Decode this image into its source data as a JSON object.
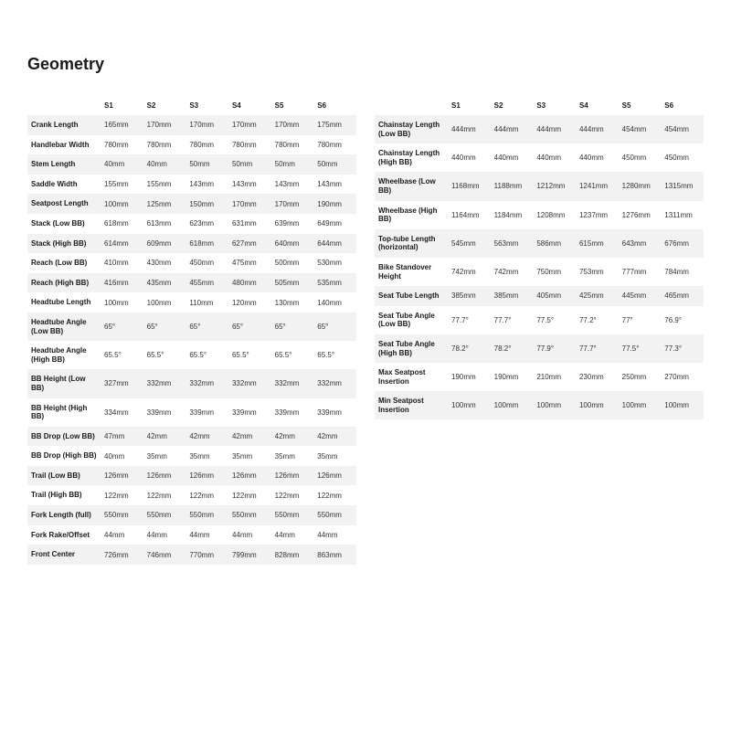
{
  "title": "Geometry",
  "columns": [
    "S1",
    "S2",
    "S3",
    "S4",
    "S5",
    "S6"
  ],
  "left_rows": [
    {
      "label": "Crank Length",
      "vals": [
        "165mm",
        "170mm",
        "170mm",
        "170mm",
        "170mm",
        "175mm"
      ]
    },
    {
      "label": "Handlebar Width",
      "vals": [
        "780mm",
        "780mm",
        "780mm",
        "780mm",
        "780mm",
        "780mm"
      ]
    },
    {
      "label": "Stem Length",
      "vals": [
        "40mm",
        "40mm",
        "50mm",
        "50mm",
        "50mm",
        "50mm"
      ]
    },
    {
      "label": "Saddle Width",
      "vals": [
        "155mm",
        "155mm",
        "143mm",
        "143mm",
        "143mm",
        "143mm"
      ]
    },
    {
      "label": "Seatpost Length",
      "vals": [
        "100mm",
        "125mm",
        "150mm",
        "170mm",
        "170mm",
        "190mm"
      ]
    },
    {
      "label": "Stack (Low BB)",
      "vals": [
        "618mm",
        "613mm",
        "623mm",
        "631mm",
        "639mm",
        "649mm"
      ]
    },
    {
      "label": "Stack (High BB)",
      "vals": [
        "614mm",
        "609mm",
        "618mm",
        "627mm",
        "640mm",
        "644mm"
      ]
    },
    {
      "label": "Reach (Low BB)",
      "vals": [
        "410mm",
        "430mm",
        "450mm",
        "475mm",
        "500mm",
        "530mm"
      ]
    },
    {
      "label": "Reach (High BB)",
      "vals": [
        "416mm",
        "435mm",
        "455mm",
        "480mm",
        "505mm",
        "535mm"
      ]
    },
    {
      "label": "Headtube Length",
      "vals": [
        "100mm",
        "100mm",
        "110mm",
        "120mm",
        "130mm",
        "140mm"
      ]
    },
    {
      "label": "Headtube Angle (Low BB)",
      "vals": [
        "65°",
        "65°",
        "65°",
        "65°",
        "65°",
        "65°"
      ]
    },
    {
      "label": "Headtube Angle (High BB)",
      "vals": [
        "65.5°",
        "65.5°",
        "65.5°",
        "65.5°",
        "65.5°",
        "65.5°"
      ]
    },
    {
      "label": "BB Height (Low BB)",
      "vals": [
        "327mm",
        "332mm",
        "332mm",
        "332mm",
        "332mm",
        "332mm"
      ]
    },
    {
      "label": "BB Height (High BB)",
      "vals": [
        "334mm",
        "339mm",
        "339mm",
        "339mm",
        "339mm",
        "339mm"
      ]
    },
    {
      "label": "BB Drop (Low BB)",
      "vals": [
        "47mm",
        "42mm",
        "42mm",
        "42mm",
        "42mm",
        "42mm"
      ]
    },
    {
      "label": "BB Drop (High BB)",
      "vals": [
        "40mm",
        "35mm",
        "35mm",
        "35mm",
        "35mm",
        "35mm"
      ]
    },
    {
      "label": "Trail (Low BB)",
      "vals": [
        "126mm",
        "126mm",
        "126mm",
        "126mm",
        "126mm",
        "126mm"
      ]
    },
    {
      "label": "Trail (High BB)",
      "vals": [
        "122mm",
        "122mm",
        "122mm",
        "122mm",
        "122mm",
        "122mm"
      ]
    },
    {
      "label": "Fork Length (full)",
      "vals": [
        "550mm",
        "550mm",
        "550mm",
        "550mm",
        "550mm",
        "550mm"
      ]
    },
    {
      "label": "Fork Rake/Offset",
      "vals": [
        "44mm",
        "44mm",
        "44mm",
        "44mm",
        "44mm",
        "44mm"
      ]
    },
    {
      "label": "Front Center",
      "vals": [
        "726mm",
        "746mm",
        "770mm",
        "799mm",
        "828mm",
        "863mm"
      ]
    }
  ],
  "right_rows": [
    {
      "label": "Chainstay Length (Low BB)",
      "vals": [
        "444mm",
        "444mm",
        "444mm",
        "444mm",
        "454mm",
        "454mm"
      ]
    },
    {
      "label": "Chainstay Length (High BB)",
      "vals": [
        "440mm",
        "440mm",
        "440mm",
        "440mm",
        "450mm",
        "450mm"
      ]
    },
    {
      "label": "Wheelbase (Low BB)",
      "vals": [
        "1168mm",
        "1188mm",
        "1212mm",
        "1241mm",
        "1280mm",
        "1315mm"
      ]
    },
    {
      "label": "Wheelbase (High BB)",
      "vals": [
        "1164mm",
        "1184mm",
        "1208mm",
        "1237mm",
        "1276mm",
        "1311mm"
      ]
    },
    {
      "label": "Top-tube Length (horizontal)",
      "vals": [
        "545mm",
        "563mm",
        "586mm",
        "615mm",
        "643mm",
        "676mm"
      ]
    },
    {
      "label": "Bike Standover Height",
      "vals": [
        "742mm",
        "742mm",
        "750mm",
        "753mm",
        "777mm",
        "784mm"
      ]
    },
    {
      "label": "Seat Tube Length",
      "vals": [
        "385mm",
        "385mm",
        "405mm",
        "425mm",
        "445mm",
        "465mm"
      ]
    },
    {
      "label": "Seat Tube Angle (Low BB)",
      "vals": [
        "77.7°",
        "77.7°",
        "77.5°",
        "77.2°",
        "77°",
        "76.9°"
      ]
    },
    {
      "label": "Seat Tube Angle (High BB)",
      "vals": [
        "78.2°",
        "78.2°",
        "77.9°",
        "77.7°",
        "77.5°",
        "77.3°"
      ]
    },
    {
      "label": "Max Seatpost Insertion",
      "vals": [
        "190mm",
        "190mm",
        "210mm",
        "230mm",
        "250mm",
        "270mm"
      ]
    },
    {
      "label": "Min Seatpost Insertion",
      "vals": [
        "100mm",
        "100mm",
        "100mm",
        "100mm",
        "100mm",
        "100mm"
      ]
    }
  ],
  "style": {
    "title_fontsize": 18,
    "body_fontsize": 8,
    "row_bg_odd": "#f2f2f2",
    "row_bg_even": "#ffffff",
    "text_color": "#333333",
    "header_text_color": "#1a1a1a",
    "page_bg": "#ffffff"
  }
}
